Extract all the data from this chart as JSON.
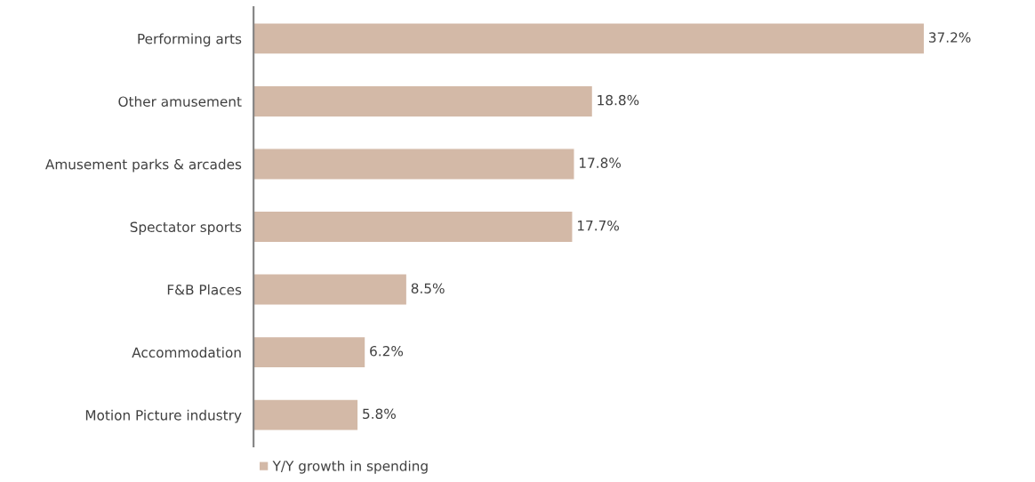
{
  "chart_data": {
    "type": "bar",
    "orientation": "horizontal",
    "categories": [
      "Performing arts",
      "Other amusement",
      "Amusement parks & arcades",
      "Spectator sports",
      "F&B Places",
      "Accommodation",
      "Motion Picture industry"
    ],
    "series": [
      {
        "name": "Y/Y growth in spending",
        "color": "#d3b9a7",
        "values": [
          37.2,
          18.8,
          17.8,
          17.7,
          8.5,
          6.2,
          5.8
        ],
        "value_labels": [
          "37.2%",
          "18.8%",
          "17.8%",
          "17.7%",
          "8.5%",
          "6.2%",
          "5.8%"
        ]
      }
    ],
    "legend": "bottom",
    "grid": false,
    "tick_labels": "y"
  }
}
